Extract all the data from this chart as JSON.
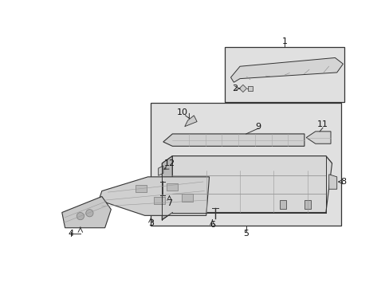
{
  "bg_color": "#ffffff",
  "box_bg": "#e8e8e8",
  "fig_width": 4.89,
  "fig_height": 3.6,
  "dpi": 100
}
